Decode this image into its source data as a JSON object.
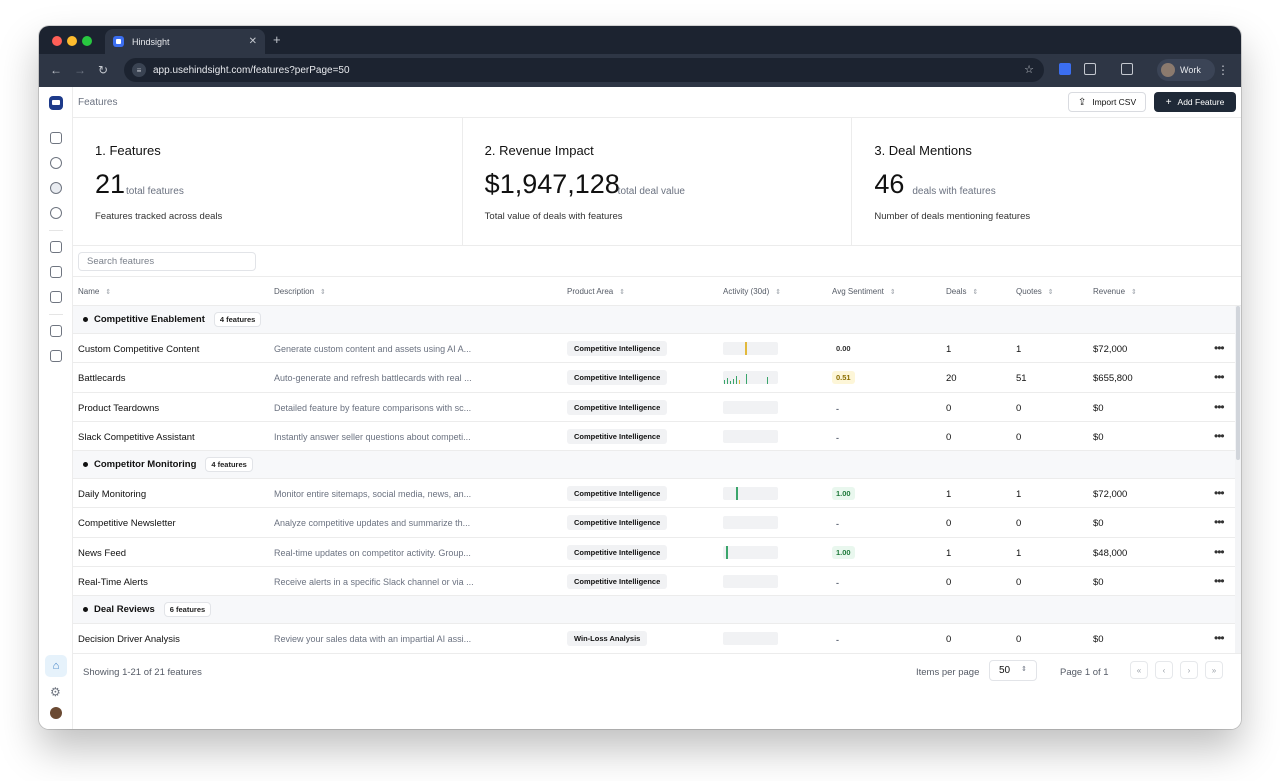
{
  "browser": {
    "tab_title": "Hindsight",
    "url": "app.usehindsight.com/features?perPage=50",
    "profile_label": "Work"
  },
  "topbar": {
    "breadcrumb": "Features",
    "import_label": "Import CSV",
    "add_label": "Add Feature"
  },
  "stats": [
    {
      "title": "1. Features",
      "value": "21",
      "unit": "total features",
      "desc": "Features tracked across deals"
    },
    {
      "title": "2. Revenue Impact",
      "value": "$1,947,128",
      "unit": "total deal value",
      "desc": "Total value of deals with features"
    },
    {
      "title": "3. Deal Mentions",
      "value": "46",
      "unit": "deals with features",
      "desc": "Number of deals mentioning features"
    }
  ],
  "search": {
    "placeholder": "Search features"
  },
  "columns": [
    "Name",
    "Description",
    "Product Area",
    "Activity (30d)",
    "Avg Sentiment",
    "Deals",
    "Quotes",
    "Revenue"
  ],
  "groups": [
    {
      "name": "Competitive Enablement",
      "badge": "4 features",
      "rows": [
        {
          "name": "Custom Competitive Content",
          "desc": "Generate custom content and assets using AI A...",
          "area": "Competitive Intelligence",
          "sentiment": "0.00",
          "deals": "1",
          "quotes": "1",
          "revenue": "$72,000"
        },
        {
          "name": "Battlecards",
          "desc": "Auto-generate and refresh battlecards with real ...",
          "area": "Competitive Intelligence",
          "sentiment": "0.51",
          "deals": "20",
          "quotes": "51",
          "revenue": "$655,800"
        },
        {
          "name": "Product Teardowns",
          "desc": "Detailed feature by feature comparisons with sc...",
          "area": "Competitive Intelligence",
          "sentiment": "-",
          "deals": "0",
          "quotes": "0",
          "revenue": "$0"
        },
        {
          "name": "Slack Competitive Assistant",
          "desc": "Instantly answer seller questions about competi...",
          "area": "Competitive Intelligence",
          "sentiment": "-",
          "deals": "0",
          "quotes": "0",
          "revenue": "$0"
        }
      ]
    },
    {
      "name": "Competitor Monitoring",
      "badge": "4 features",
      "rows": [
        {
          "name": "Daily Monitoring",
          "desc": "Monitor entire sitemaps, social media, news, an...",
          "area": "Competitive Intelligence",
          "sentiment": "1.00",
          "deals": "1",
          "quotes": "1",
          "revenue": "$72,000"
        },
        {
          "name": "Competitive Newsletter",
          "desc": "Analyze competitive updates and summarize th...",
          "area": "Competitive Intelligence",
          "sentiment": "-",
          "deals": "0",
          "quotes": "0",
          "revenue": "$0"
        },
        {
          "name": "News Feed",
          "desc": "Real-time updates on competitor activity. Group...",
          "area": "Competitive Intelligence",
          "sentiment": "1.00",
          "deals": "1",
          "quotes": "1",
          "revenue": "$48,000"
        },
        {
          "name": "Real-Time Alerts",
          "desc": "Receive alerts in a specific Slack channel or via ...",
          "area": "Competitive Intelligence",
          "sentiment": "-",
          "deals": "0",
          "quotes": "0",
          "revenue": "$0"
        }
      ]
    },
    {
      "name": "Deal Reviews",
      "badge": "6 features",
      "rows": [
        {
          "name": "Decision Driver Analysis",
          "desc": "Review your sales data with an impartial AI assi...",
          "area": "Win-Loss Analysis",
          "sentiment": "-",
          "deals": "0",
          "quotes": "0",
          "revenue": "$0"
        }
      ]
    }
  ],
  "footer": {
    "showing": "Showing 1-21 of 21 features",
    "items_per_page_label": "Items per page",
    "items_per_page": "50",
    "page_of": "Page 1 of 1"
  },
  "colors": {
    "accent": "#1f2937",
    "sentiment_positive": "#1f7a3a",
    "sentiment_mixed": "#8a6d00",
    "activity_green": "#3aa56b",
    "activity_amber": "#e2b93b"
  }
}
